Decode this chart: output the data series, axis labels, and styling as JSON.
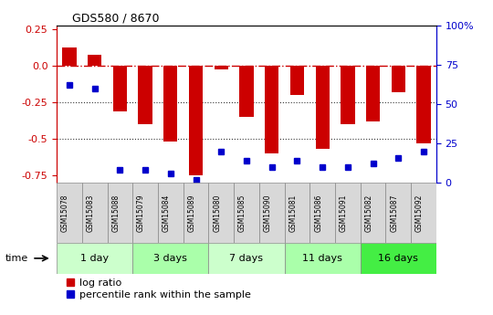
{
  "title": "GDS580 / 8670",
  "samples": [
    "GSM15078",
    "GSM15083",
    "GSM15088",
    "GSM15079",
    "GSM15084",
    "GSM15089",
    "GSM15080",
    "GSM15085",
    "GSM15090",
    "GSM15081",
    "GSM15086",
    "GSM15091",
    "GSM15082",
    "GSM15087",
    "GSM15092"
  ],
  "log_ratio": [
    0.13,
    0.08,
    -0.31,
    -0.4,
    -0.52,
    -0.75,
    -0.02,
    -0.35,
    -0.6,
    -0.2,
    -0.57,
    -0.4,
    -0.38,
    -0.18,
    -0.53
  ],
  "percentile_pct": [
    62,
    60,
    8,
    8,
    6,
    2,
    20,
    14,
    10,
    14,
    10,
    10,
    12,
    16,
    20
  ],
  "groups": [
    {
      "label": "1 day",
      "start": 0,
      "end": 2,
      "color": "#ccffcc"
    },
    {
      "label": "3 days",
      "start": 3,
      "end": 5,
      "color": "#aaffaa"
    },
    {
      "label": "7 days",
      "start": 6,
      "end": 8,
      "color": "#ccffcc"
    },
    {
      "label": "11 days",
      "start": 9,
      "end": 11,
      "color": "#aaffaa"
    },
    {
      "label": "16 days",
      "start": 12,
      "end": 14,
      "color": "#44ee44"
    }
  ],
  "bar_color": "#cc0000",
  "dot_color": "#0000cc",
  "ylim": [
    -0.8,
    0.28
  ],
  "left_yticks": [
    -0.75,
    -0.5,
    -0.25,
    0.0,
    0.25
  ],
  "right_yticks_pct": [
    0,
    25,
    50,
    75,
    100
  ],
  "hline_color": "#cc0000",
  "dotted_color": "#333333",
  "legend_log_ratio": "log ratio",
  "legend_percentile": "percentile rank within the sample",
  "xlabel_time": "time",
  "bar_width": 0.55,
  "dot_marker_size": 5,
  "bg_color": "#ffffff",
  "sample_box_color": "#d8d8d8",
  "sample_box_edge": "#888888"
}
